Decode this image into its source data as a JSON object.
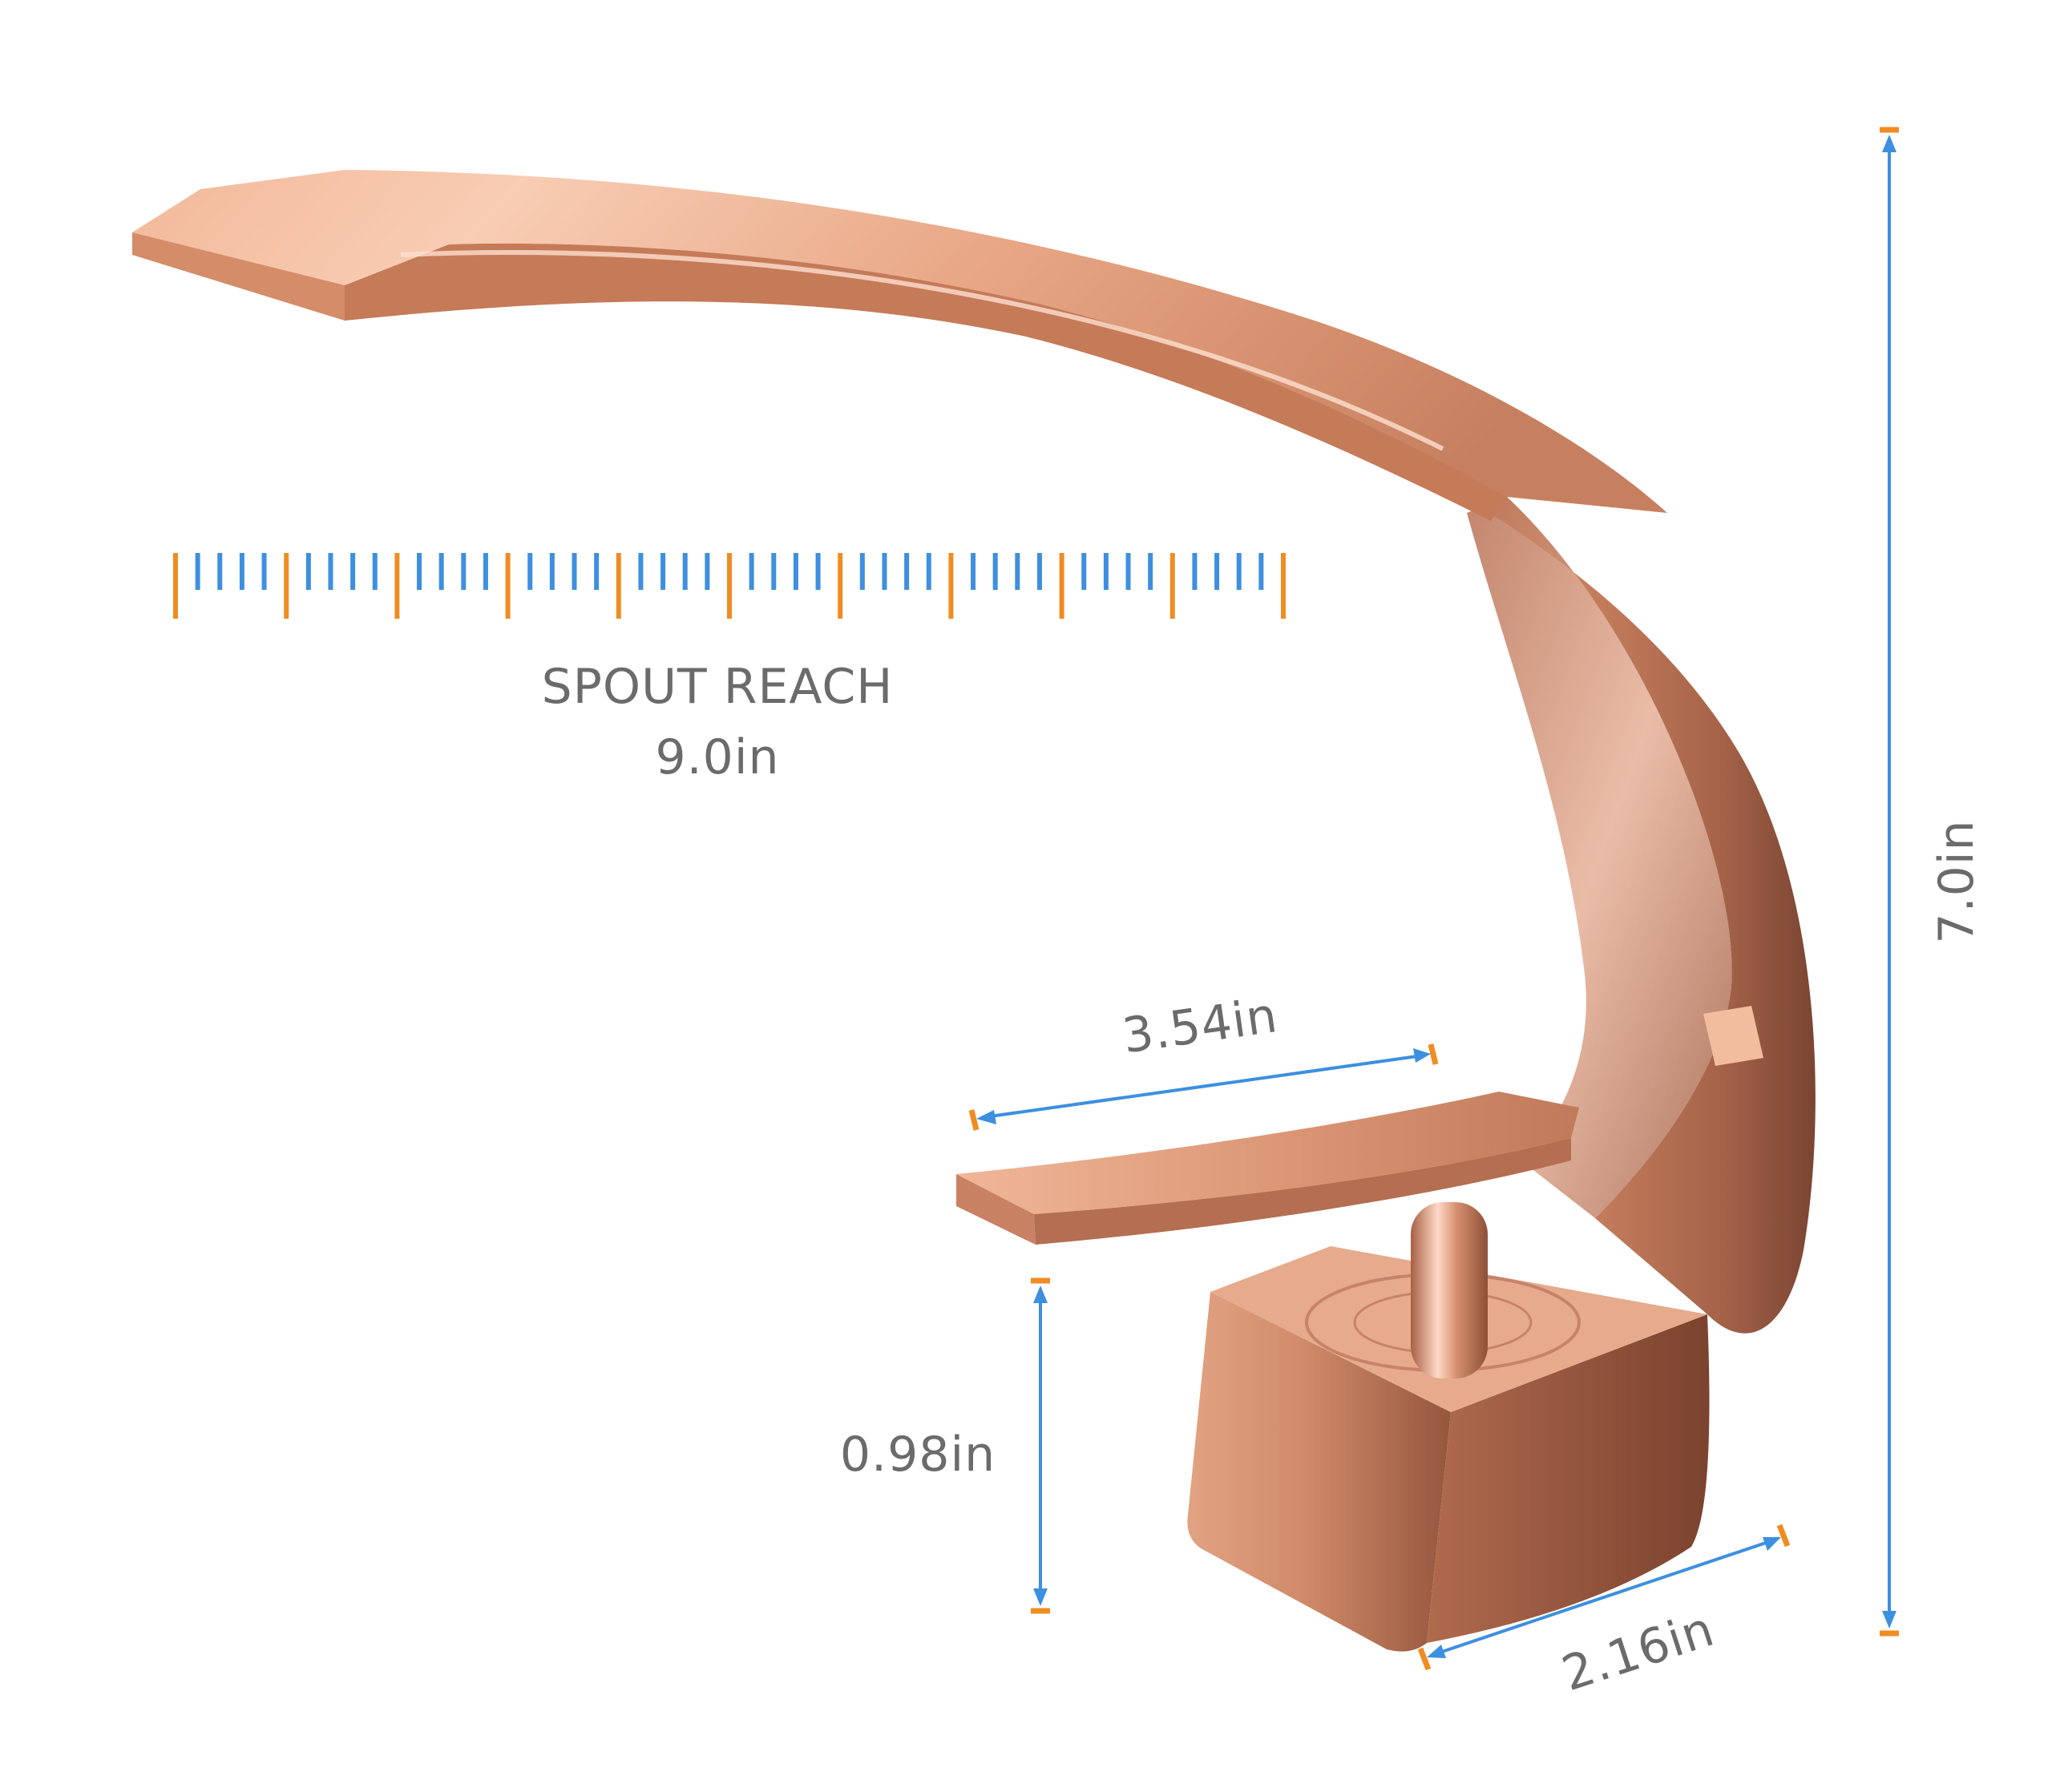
{
  "labels": {
    "spout_reach_title": "SPOUT REACH",
    "spout_reach_value": "9.0in",
    "height_value": "7.0in",
    "handle_length_value": "3.54in",
    "base_height_value": "0.98in",
    "base_depth_value": "2.16in"
  },
  "colors": {
    "finish": "#d9906f",
    "finish_highlight": "#f6c7ad",
    "finish_shadow": "#9a5a41",
    "dimension_line": "#3d8fe0",
    "tick_major": "#f08c22",
    "tick_minor": "#3d8fe0",
    "label_text": "#6b6b6b"
  }
}
